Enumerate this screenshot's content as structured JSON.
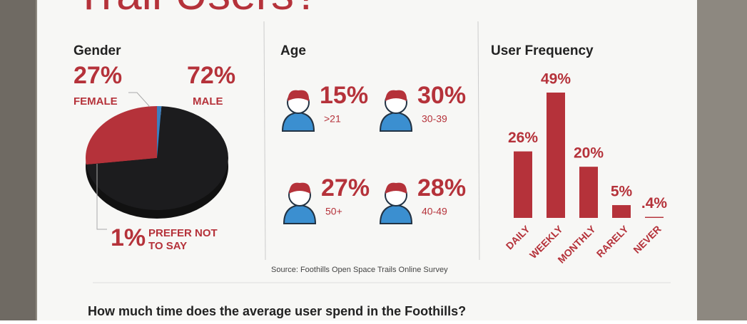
{
  "header": {
    "title": "Trail Users?"
  },
  "chart_data": [
    {
      "type": "pie",
      "title": "Gender",
      "categories": [
        "FEMALE",
        "MALE",
        "PREFER NOT TO SAY"
      ],
      "values": [
        27,
        72,
        1
      ],
      "value_labels": [
        "27%",
        "72%",
        "1%"
      ],
      "colors": [
        "#b5323a",
        "#1c1c1e",
        "#3b7fc0"
      ]
    },
    {
      "type": "icon-stat",
      "title": "Age",
      "categories": [
        ">21",
        "30-39",
        "50+",
        "40-49"
      ],
      "values": [
        15,
        30,
        27,
        28
      ],
      "value_labels": [
        "15%",
        "30%",
        "27%",
        "28%"
      ],
      "color": "#b5323a"
    },
    {
      "type": "bar",
      "title": "User Frequency",
      "categories": [
        "DAILY",
        "WEEKLY",
        "MONTHLY",
        "RARELY",
        "NEVER"
      ],
      "values": [
        26,
        49,
        20,
        5,
        0.4
      ],
      "value_labels": [
        "26%",
        "49%",
        "20%",
        "5%",
        ".4%"
      ],
      "color": "#b5323a"
    }
  ],
  "source": "Source: Foothills Open Space Trails Online Survey",
  "question": "How much time does the average user spend in the Foothills?"
}
